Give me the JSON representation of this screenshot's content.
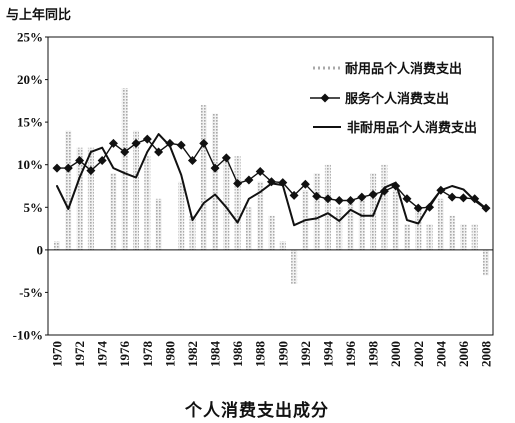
{
  "chart_data": {
    "type": "line",
    "title": "个人消费支出成分",
    "ylabel": "与上年同比",
    "ylim": [
      -10,
      25
    ],
    "xlim": [
      1970,
      2008
    ],
    "grid": false,
    "legend_position": "top-right",
    "y_ticks": [
      {
        "value": 25,
        "label": "25%"
      },
      {
        "value": 20,
        "label": "20%"
      },
      {
        "value": 15,
        "label": "15%"
      },
      {
        "value": 10,
        "label": "10%"
      },
      {
        "value": 5,
        "label": "5%"
      },
      {
        "value": 0,
        "label": "0"
      },
      {
        "value": -5,
        "label": "-5%"
      },
      {
        "value": -10,
        "label": "-10%"
      }
    ],
    "x_ticks": [
      1970,
      1972,
      1974,
      1976,
      1978,
      1980,
      1982,
      1984,
      1986,
      1988,
      1990,
      1992,
      1994,
      1996,
      1998,
      2000,
      2002,
      2004,
      2006,
      2008
    ],
    "x": [
      1970,
      1971,
      1972,
      1973,
      1974,
      1975,
      1976,
      1977,
      1978,
      1979,
      1980,
      1981,
      1982,
      1983,
      1984,
      1985,
      1986,
      1987,
      1988,
      1989,
      1990,
      1991,
      1992,
      1993,
      1994,
      1995,
      1996,
      1997,
      1998,
      1999,
      2000,
      2001,
      2002,
      2003,
      2004,
      2005,
      2006,
      2007,
      2008
    ],
    "series": [
      {
        "name": "耐用品个人消费支出",
        "type": "bar",
        "color": "#a9a9a9",
        "values": [
          1,
          14,
          12,
          12,
          0,
          9,
          19,
          14,
          11,
          6,
          0,
          8,
          4,
          17,
          16,
          11,
          11,
          5,
          8,
          4,
          1,
          -4,
          7,
          9,
          10,
          5,
          6,
          6,
          9,
          10,
          7,
          3,
          5,
          3,
          6,
          4,
          3,
          3,
          -3
        ]
      },
      {
        "name": "服务个人消费支出",
        "type": "line",
        "marker": "diamond",
        "color": "#111111",
        "values": [
          9.6,
          9.6,
          10.5,
          9.3,
          10.5,
          12.5,
          11.5,
          12.5,
          13.0,
          11.5,
          12.5,
          12.3,
          10.5,
          12.5,
          9.6,
          10.8,
          7.8,
          8.2,
          9.2,
          8.0,
          7.9,
          6.4,
          7.7,
          6.3,
          6.0,
          5.8,
          5.8,
          6.2,
          6.5,
          6.9,
          7.5,
          6.0,
          4.9,
          5.0,
          7.0,
          6.2,
          6.1,
          6.0,
          4.9
        ]
      },
      {
        "name": "非耐用品个人消费支出",
        "type": "line",
        "color": "#111111",
        "values": [
          7.5,
          4.8,
          8.5,
          11.5,
          12.0,
          9.6,
          9.0,
          8.5,
          11.5,
          13.6,
          12.2,
          8.8,
          3.5,
          5.5,
          6.5,
          5.0,
          3.2,
          6.0,
          6.8,
          7.8,
          7.6,
          2.9,
          3.5,
          3.7,
          4.3,
          3.4,
          4.7,
          4.0,
          4.0,
          7.3,
          7.9,
          3.5,
          3.1,
          5.3,
          7.0,
          7.5,
          7.1,
          5.8,
          4.8
        ]
      }
    ]
  }
}
